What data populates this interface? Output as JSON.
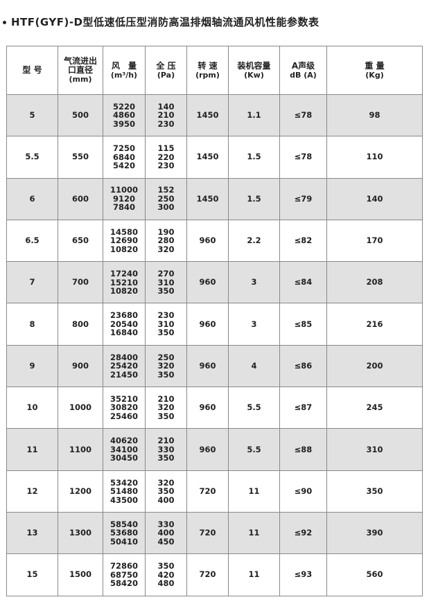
{
  "title": "HTF(GYF)-D型低速低压型消防高温排烟轴流通风机性能参数表",
  "colors": {
    "shaded_row": "#e1e1e1",
    "border": "#888888"
  },
  "headers": [
    {
      "label": "型 号",
      "unit": ""
    },
    {
      "label": "气流进出\n口直径",
      "unit": "(mm)"
    },
    {
      "label": "风　量",
      "unit": "(m³/h)"
    },
    {
      "label": "全 压",
      "unit": "(Pa)"
    },
    {
      "label": "转 速",
      "unit": "(rpm)"
    },
    {
      "label": "装机容量",
      "unit": "(Kw)"
    },
    {
      "label": "A声级",
      "unit": "dB (A)"
    },
    {
      "label": "重 量",
      "unit": "(Kg)"
    }
  ],
  "rows": [
    {
      "model": "5",
      "diameter": "500",
      "airflow": [
        "5220",
        "4860",
        "3950"
      ],
      "pressure": [
        "140",
        "210",
        "230"
      ],
      "speed": "1450",
      "power": "1.1",
      "noise": "≤78",
      "weight": "98"
    },
    {
      "model": "5.5",
      "diameter": "550",
      "airflow": [
        "7250",
        "6840",
        "5420"
      ],
      "pressure": [
        "115",
        "220",
        "230"
      ],
      "speed": "1450",
      "power": "1.5",
      "noise": "≤78",
      "weight": "110"
    },
    {
      "model": "6",
      "diameter": "600",
      "airflow": [
        "11000",
        "9120",
        "7840"
      ],
      "pressure": [
        "152",
        "250",
        "300"
      ],
      "speed": "1450",
      "power": "1.5",
      "noise": "≤79",
      "weight": "140"
    },
    {
      "model": "6.5",
      "diameter": "650",
      "airflow": [
        "14580",
        "12690",
        "10820"
      ],
      "pressure": [
        "190",
        "280",
        "320"
      ],
      "speed": "960",
      "power": "2.2",
      "noise": "≤82",
      "weight": "170"
    },
    {
      "model": "7",
      "diameter": "700",
      "airflow": [
        "17240",
        "15210",
        "10820"
      ],
      "pressure": [
        "270",
        "310",
        "350"
      ],
      "speed": "960",
      "power": "3",
      "noise": "≤84",
      "weight": "208"
    },
    {
      "model": "8",
      "diameter": "800",
      "airflow": [
        "23680",
        "20540",
        "16840"
      ],
      "pressure": [
        "230",
        "310",
        "350"
      ],
      "speed": "960",
      "power": "3",
      "noise": "≤85",
      "weight": "216"
    },
    {
      "model": "9",
      "diameter": "900",
      "airflow": [
        "28400",
        "25420",
        "21450"
      ],
      "pressure": [
        "250",
        "320",
        "350"
      ],
      "speed": "960",
      "power": "4",
      "noise": "≤86",
      "weight": "200"
    },
    {
      "model": "10",
      "diameter": "1000",
      "airflow": [
        "35210",
        "30820",
        "25460"
      ],
      "pressure": [
        "210",
        "320",
        "350"
      ],
      "speed": "960",
      "power": "5.5",
      "noise": "≤87",
      "weight": "245"
    },
    {
      "model": "11",
      "diameter": "1100",
      "airflow": [
        "40620",
        "34100",
        "30450"
      ],
      "pressure": [
        "210",
        "330",
        "350"
      ],
      "speed": "960",
      "power": "5.5",
      "noise": "≤88",
      "weight": "310"
    },
    {
      "model": "12",
      "diameter": "1200",
      "airflow": [
        "53420",
        "51480",
        "43500"
      ],
      "pressure": [
        "320",
        "350",
        "400"
      ],
      "speed": "720",
      "power": "11",
      "noise": "≤90",
      "weight": "350"
    },
    {
      "model": "13",
      "diameter": "1300",
      "airflow": [
        "58540",
        "53680",
        "50410"
      ],
      "pressure": [
        "330",
        "400",
        "450"
      ],
      "speed": "720",
      "power": "11",
      "noise": "≤92",
      "weight": "390"
    },
    {
      "model": "15",
      "diameter": "1500",
      "airflow": [
        "72860",
        "68750",
        "58420"
      ],
      "pressure": [
        "350",
        "420",
        "480"
      ],
      "speed": "720",
      "power": "11",
      "noise": "≤93",
      "weight": "560"
    }
  ]
}
